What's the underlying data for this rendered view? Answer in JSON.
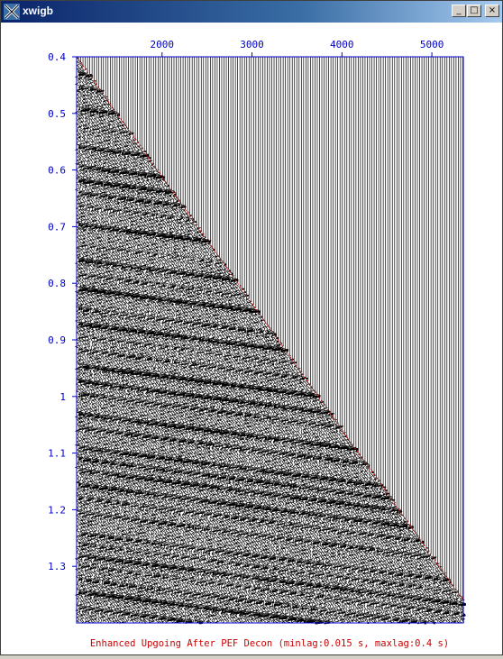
{
  "window": {
    "title": "xwigb",
    "buttons": {
      "minimize": "_",
      "maximize": "□",
      "close": "×"
    }
  },
  "colors": {
    "axis": "#0000c8",
    "trace": "#000000",
    "title": "#cc0000",
    "titlebar": "#0a246a"
  },
  "chart_data": {
    "type": "seismic-wiggle",
    "title": "Enhanced Upgoing After PEF Decon (minlag:0.015 s, maxlag:0.4 s)",
    "xlabel": "",
    "ylabel": "",
    "x_ticks": [
      "2000",
      "3000",
      "4000",
      "5000"
    ],
    "x_tick_values": [
      2000,
      3000,
      4000,
      5000
    ],
    "xlim": [
      1050,
      5350
    ],
    "y_ticks": [
      "0.4",
      "0.5",
      "0.6",
      "0.7",
      "0.8",
      "0.9",
      "1",
      "1.1",
      "1.2",
      "1.3"
    ],
    "y_tick_values": [
      0.4,
      0.5,
      0.6,
      0.7,
      0.8,
      0.9,
      1.0,
      1.1,
      1.2,
      1.3
    ],
    "ylim": [
      0.4,
      1.4
    ],
    "y_inverted": true,
    "first_break": {
      "x": [
        1050,
        5350
      ],
      "t": [
        0.4,
        1.36
      ]
    },
    "trace_count": 170
  }
}
